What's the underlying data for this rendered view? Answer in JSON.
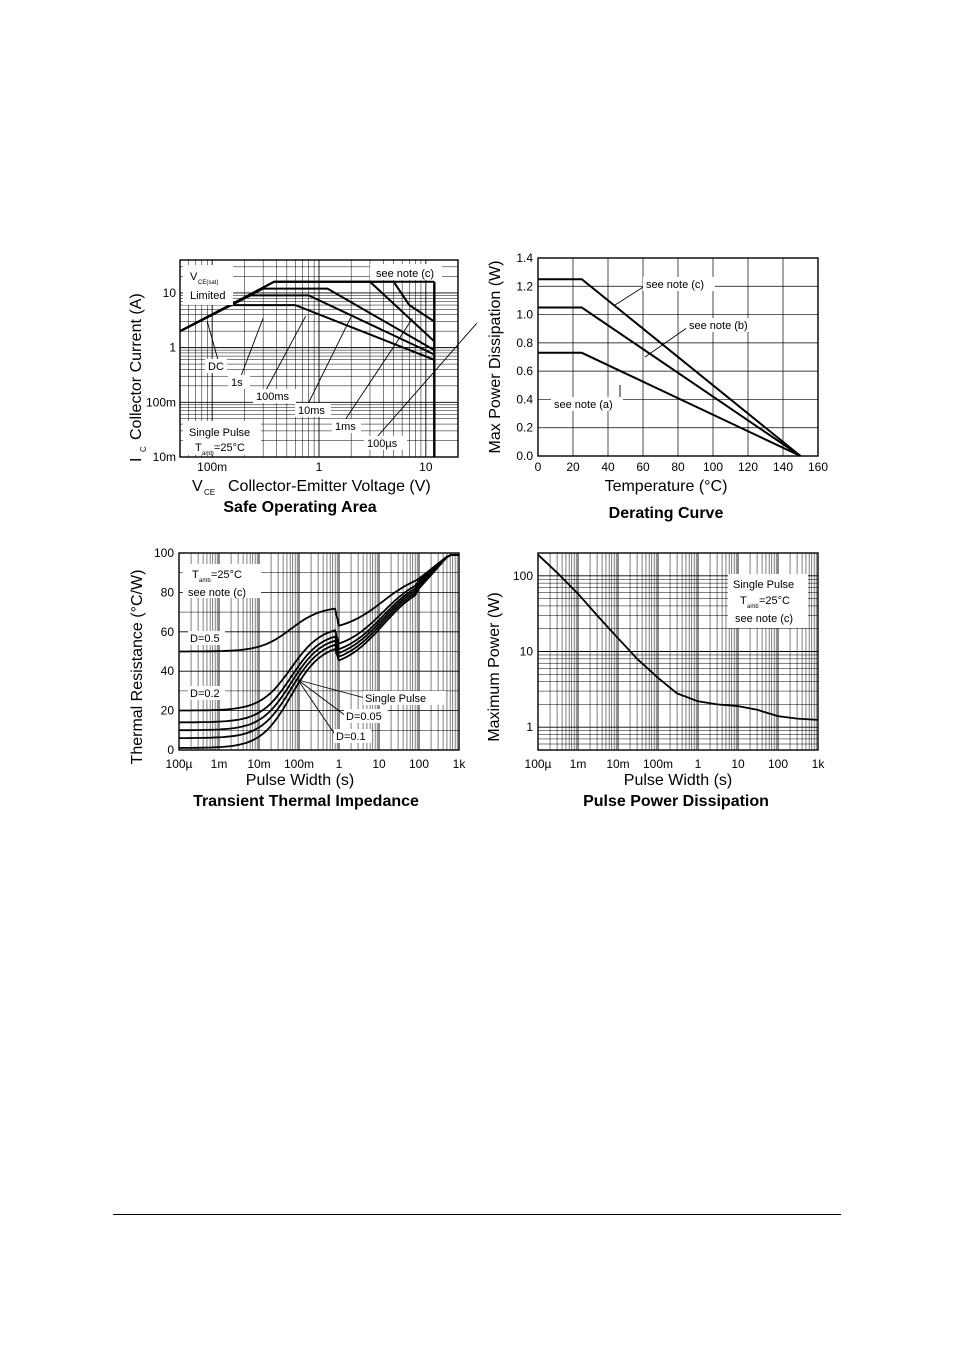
{
  "chart_data": [
    {
      "type": "line",
      "title": "Safe Operating Area",
      "xlabel": "V",
      "xlabel_sub": "CE",
      "xlabel_rest": "Collector-Emitter Voltage (V)",
      "ylabel": "I",
      "ylabel_sub": "C",
      "ylabel_rest": "Collector Current (A)",
      "x_scale": "log",
      "y_scale": "log",
      "xlim": [
        0.05,
        20
      ],
      "ylim": [
        0.01,
        40
      ],
      "x_ticks": [
        {
          "v": 0.1,
          "label": "100m"
        },
        {
          "v": 1,
          "label": "1"
        },
        {
          "v": 10,
          "label": "10"
        }
      ],
      "y_ticks": [
        {
          "v": 0.01,
          "label": "10m"
        },
        {
          "v": 0.1,
          "label": "100m"
        },
        {
          "v": 1,
          "label": "1"
        },
        {
          "v": 10,
          "label": "10"
        }
      ],
      "grid": true,
      "annotations": {
        "vce_sat_main": "V",
        "vce_sat_sub": "CE(sat)",
        "limited": "Limited",
        "note": "see note (c)",
        "single_pulse": "Single Pulse",
        "tamb_main": "T",
        "tamb_sub": "amb",
        "tamb_val": "=25°C"
      },
      "series": [
        {
          "name": "DC",
          "points": [
            [
              0.05,
              2
            ],
            [
              0.15,
              6
            ],
            [
              0.6,
              6
            ],
            [
              12,
              0.6
            ]
          ]
        },
        {
          "name": "1s",
          "points": [
            [
              0.05,
              2
            ],
            [
              0.23,
              9
            ],
            [
              0.8,
              9
            ],
            [
              12,
              0.75
            ]
          ]
        },
        {
          "name": "100ms",
          "points": [
            [
              0.05,
              2
            ],
            [
              0.3,
              12
            ],
            [
              1.2,
              12
            ],
            [
              12,
              0.9
            ]
          ]
        },
        {
          "name": "10ms",
          "points": [
            [
              0.05,
              2
            ],
            [
              0.38,
              16
            ],
            [
              3,
              16
            ],
            [
              12,
              1.3
            ]
          ]
        },
        {
          "name": "1ms",
          "points": [
            [
              0.05,
              2
            ],
            [
              0.38,
              16
            ],
            [
              5,
              16
            ],
            [
              7,
              6
            ],
            [
              12,
              3
            ]
          ]
        },
        {
          "name": "100µs",
          "points": [
            [
              0.05,
              2
            ],
            [
              0.38,
              16
            ],
            [
              12,
              16
            ]
          ]
        }
      ]
    },
    {
      "type": "line",
      "title": "Derating Curve",
      "xlabel": "Temperature (°C)",
      "ylabel": "Max Power Dissipation (W)",
      "xlim": [
        0,
        160
      ],
      "ylim": [
        0,
        1.4
      ],
      "x_ticks": [
        "0",
        "20",
        "40",
        "60",
        "80",
        "100",
        "120",
        "140",
        "160"
      ],
      "y_ticks": [
        "0.0",
        "0.2",
        "0.4",
        "0.6",
        "0.8",
        "1.0",
        "1.2",
        "1.4"
      ],
      "grid": true,
      "series": [
        {
          "name": "see note (c)",
          "points": [
            [
              0,
              1.25
            ],
            [
              25,
              1.25
            ],
            [
              150,
              0
            ]
          ]
        },
        {
          "name": "see note (b)",
          "points": [
            [
              0,
              1.05
            ],
            [
              25,
              1.05
            ],
            [
              150,
              0
            ]
          ]
        },
        {
          "name": "see note (a)",
          "points": [
            [
              0,
              0.73
            ],
            [
              25,
              0.73
            ],
            [
              150,
              0
            ]
          ]
        }
      ]
    },
    {
      "type": "line",
      "title": "Transient Thermal Impedance",
      "xlabel": "Pulse Width (s)",
      "ylabel": "Thermal Resistance (°C/W)",
      "x_scale": "log",
      "xlim": [
        0.0001,
        1000
      ],
      "ylim": [
        0,
        100
      ],
      "x_ticks": [
        "100µ",
        "1m",
        "10m",
        "100m",
        "1",
        "10",
        "100",
        "1k"
      ],
      "y_ticks": [
        "0",
        "20",
        "40",
        "60",
        "80",
        "100"
      ],
      "grid": true,
      "annotations": {
        "tamb_main": "T",
        "tamb_sub": "amb",
        "tamb_val": "=25°C",
        "note": "see note (c)"
      },
      "series": [
        {
          "name": "D=0.5",
          "y0": 50,
          "y1": 65,
          "y10": 80,
          "y100": 87
        },
        {
          "name": "D=0.2",
          "y0": 20,
          "y1": 55,
          "y10": 76,
          "y100": 86
        },
        {
          "name": "",
          "y0": 14,
          "y1": 52,
          "y10": 75,
          "y100": 85
        },
        {
          "name": "D=0.1",
          "y0": 10,
          "y1": 50,
          "y10": 73,
          "y100": 84
        },
        {
          "name": "D=0.05",
          "y0": 6,
          "y1": 48,
          "y10": 72,
          "y100": 83
        },
        {
          "name": "Single Pulse",
          "y0": 1,
          "y1": 46,
          "y10": 70,
          "y100": 82
        }
      ]
    },
    {
      "type": "line",
      "title": "Pulse Power Dissipation",
      "xlabel": "Pulse Width (s)",
      "ylabel": "Maximum Power (W)",
      "x_scale": "log",
      "y_scale": "log",
      "xlim": [
        0.0001,
        1000
      ],
      "ylim": [
        0.5,
        200
      ],
      "x_ticks": [
        "100µ",
        "1m",
        "10m",
        "100m",
        "1",
        "10",
        "100",
        "1k"
      ],
      "y_ticks": [
        "1",
        "10",
        "100"
      ],
      "grid": true,
      "annotations": {
        "single_pulse": "Single Pulse",
        "tamb_main": "T",
        "tamb_sub": "amb",
        "tamb_val": "=25°C",
        "note": "see note (c)"
      },
      "series": [
        {
          "name": "",
          "points": [
            [
              0.0001,
              190
            ],
            [
              0.0003,
              110
            ],
            [
              0.001,
              58
            ],
            [
              0.003,
              30
            ],
            [
              0.01,
              15
            ],
            [
              0.03,
              8
            ],
            [
              0.1,
              4.5
            ],
            [
              0.3,
              2.8
            ],
            [
              1,
              2.2
            ],
            [
              3,
              2.0
            ],
            [
              10,
              1.9
            ],
            [
              30,
              1.7
            ],
            [
              100,
              1.4
            ],
            [
              300,
              1.3
            ],
            [
              1000,
              1.25
            ]
          ]
        }
      ]
    }
  ]
}
